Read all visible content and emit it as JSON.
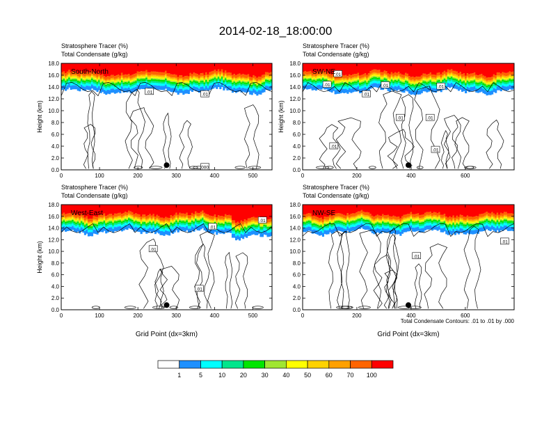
{
  "figure": {
    "title": "2014-02-18_18:00:00",
    "footnote": "Total Condensate Contours: .01 to .01 by .000"
  },
  "colors": {
    "tracer_levels": [
      "#ffffff",
      "#1e90ff",
      "#00ffff",
      "#00e68c",
      "#00e600",
      "#a0e632",
      "#ffff00",
      "#ffd200",
      "#ffa000",
      "#ff6400",
      "#ff0000"
    ],
    "contour_line": "#000000",
    "frame": "#000000"
  },
  "colorbar": {
    "tick_labels": [
      "1",
      "5",
      "10",
      "20",
      "30",
      "40",
      "50",
      "60",
      "70",
      "100"
    ]
  },
  "chart_data": [
    {
      "type": "heatmap",
      "panel_label": "South-North",
      "line1": "Stratosphere Tracer   (%)",
      "line2": "Total Condensate   (g/kg)",
      "ylabel": "Height (km)",
      "xlabel": "",
      "xlim": [
        0,
        550
      ],
      "ylim": [
        0,
        18
      ],
      "xticks": [
        "0",
        "100",
        "200",
        "300",
        "400",
        "500"
      ],
      "xtick_values": [
        0,
        100,
        200,
        300,
        400,
        500
      ],
      "yticks": [
        "0.0",
        "2.0",
        "4.0",
        "6.0",
        "8.0",
        "10.0",
        "12.0",
        "14.0",
        "16.0",
        "18.0"
      ],
      "marker": {
        "x": 275,
        "y": 0.8
      },
      "contour_labels": [
        {
          "text": ".01",
          "x": 230,
          "y": 13.2
        },
        {
          "text": ".01",
          "x": 375,
          "y": 12.8
        },
        {
          "text": "000",
          "x": 375,
          "y": 0.5
        }
      ]
    },
    {
      "type": "heatmap",
      "panel_label": "SW-NE",
      "line1": "Stratosphere Tracer   (%)",
      "line2": "Total Condensate   (g/kg)",
      "ylabel": "Height (km)",
      "xlabel": "",
      "xlim": [
        0,
        780
      ],
      "ylim": [
        0,
        18
      ],
      "xticks": [
        "0",
        "200",
        "400",
        "600"
      ],
      "xtick_values": [
        0,
        200,
        400,
        600
      ],
      "yticks": [
        "0.0",
        "2.0",
        "4.0",
        "6.0",
        "8.0",
        "10.0",
        "12.0",
        "14.0",
        "16.0",
        "18.0"
      ],
      "marker": {
        "x": 390,
        "y": 0.8
      },
      "contour_labels": [
        {
          "text": ".01",
          "x": 90,
          "y": 14.4
        },
        {
          "text": ".01",
          "x": 130,
          "y": 16.2
        },
        {
          "text": ".01",
          "x": 235,
          "y": 12.8
        },
        {
          "text": ".01",
          "x": 305,
          "y": 14.3
        },
        {
          "text": ".01",
          "x": 510,
          "y": 14.1
        },
        {
          "text": ".01",
          "x": 360,
          "y": 8.8
        },
        {
          "text": ".01",
          "x": 470,
          "y": 8.8
        },
        {
          "text": ".01",
          "x": 115,
          "y": 4.0
        },
        {
          "text": ".01",
          "x": 490,
          "y": 3.4
        }
      ]
    },
    {
      "type": "heatmap",
      "panel_label": "West-East",
      "line1": "Stratosphere Tracer   (%)",
      "line2": "Total Condensate   (g/kg)",
      "ylabel": "Height (km)",
      "xlabel": "Grid Point (dx=3km)",
      "xlim": [
        0,
        550
      ],
      "ylim": [
        0,
        18
      ],
      "xticks": [
        "0",
        "100",
        "200",
        "300",
        "400",
        "500"
      ],
      "xtick_values": [
        0,
        100,
        200,
        300,
        400,
        500
      ],
      "yticks": [
        "0.0",
        "2.0",
        "4.0",
        "6.0",
        "8.0",
        "10.0",
        "12.0",
        "14.0",
        "16.0",
        "18.0"
      ],
      "marker": {
        "x": 275,
        "y": 0.8
      },
      "contour_labels": [
        {
          "text": ".01",
          "x": 395,
          "y": 14.2
        },
        {
          "text": ".01",
          "x": 525,
          "y": 15.3
        },
        {
          "text": ".01",
          "x": 240,
          "y": 10.4
        },
        {
          "text": ".01",
          "x": 360,
          "y": 3.6
        }
      ]
    },
    {
      "type": "heatmap",
      "panel_label": "NW-SE",
      "line1": "Stratosphere Tracer   (%)",
      "line2": "Total Condensate   (g/kg)",
      "ylabel": "",
      "xlabel": "Grid Point (dx=3km)",
      "xlim": [
        0,
        780
      ],
      "ylim": [
        0,
        18
      ],
      "xticks": [
        "0",
        "200",
        "400",
        "600"
      ],
      "xtick_values": [
        0,
        200,
        400,
        600
      ],
      "yticks": [
        "0.0",
        "2.0",
        "4.0",
        "6.0",
        "8.0",
        "10.0",
        "12.0",
        "14.0",
        "16.0",
        "18.0"
      ],
      "marker": {
        "x": 390,
        "y": 0.8
      },
      "contour_labels": [
        {
          "text": ".01",
          "x": 420,
          "y": 9.2
        },
        {
          "text": ".01",
          "x": 745,
          "y": 11.7
        }
      ]
    }
  ]
}
